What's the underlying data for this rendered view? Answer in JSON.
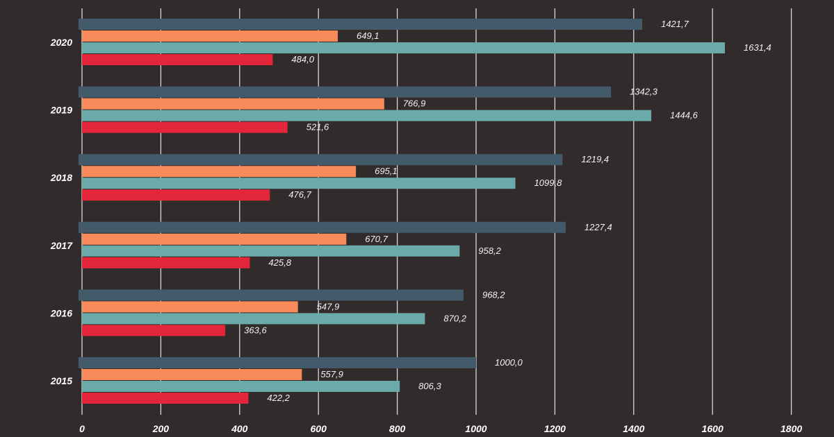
{
  "chart_data": {
    "type": "bar",
    "orientation": "horizontal",
    "categories": [
      "2020",
      "2019",
      "2018",
      "2017",
      "2016",
      "2015"
    ],
    "series": [
      {
        "color": "#435a6b",
        "values": [
          1421.7,
          1342.3,
          1219.4,
          1227.4,
          968.2,
          1000.0
        ],
        "labels": [
          "1421,7",
          "1342,3",
          "1219,4",
          "1227,4",
          "968,2",
          "1000,0"
        ]
      },
      {
        "color": "#f98a5a",
        "values": [
          649.1,
          766.9,
          695.1,
          670.7,
          547.9,
          557.9
        ],
        "labels": [
          "649,1",
          "766,9",
          "695,1",
          "670,7",
          "547,9",
          "557,9"
        ]
      },
      {
        "color": "#6aaaa8",
        "values": [
          1631.4,
          1444.6,
          1099.8,
          958.2,
          870.2,
          806.3
        ],
        "labels": [
          "1631,4",
          "1444,6",
          "1099,8",
          "958,2",
          "870,2",
          "806,3"
        ]
      },
      {
        "color": "#e3263a",
        "values": [
          484.0,
          521.6,
          476.7,
          425.8,
          363.6,
          422.2
        ],
        "labels": [
          "484,0",
          "521,6",
          "476,7",
          "425,8",
          "363,6",
          "422,2"
        ]
      }
    ],
    "xticks": [
      "0",
      "200",
      "400",
      "600",
      "800",
      "1000",
      "1200",
      "1400",
      "1600",
      "1800"
    ],
    "xlim": [
      0,
      1800
    ],
    "grid": true,
    "background": "#322b2b"
  }
}
